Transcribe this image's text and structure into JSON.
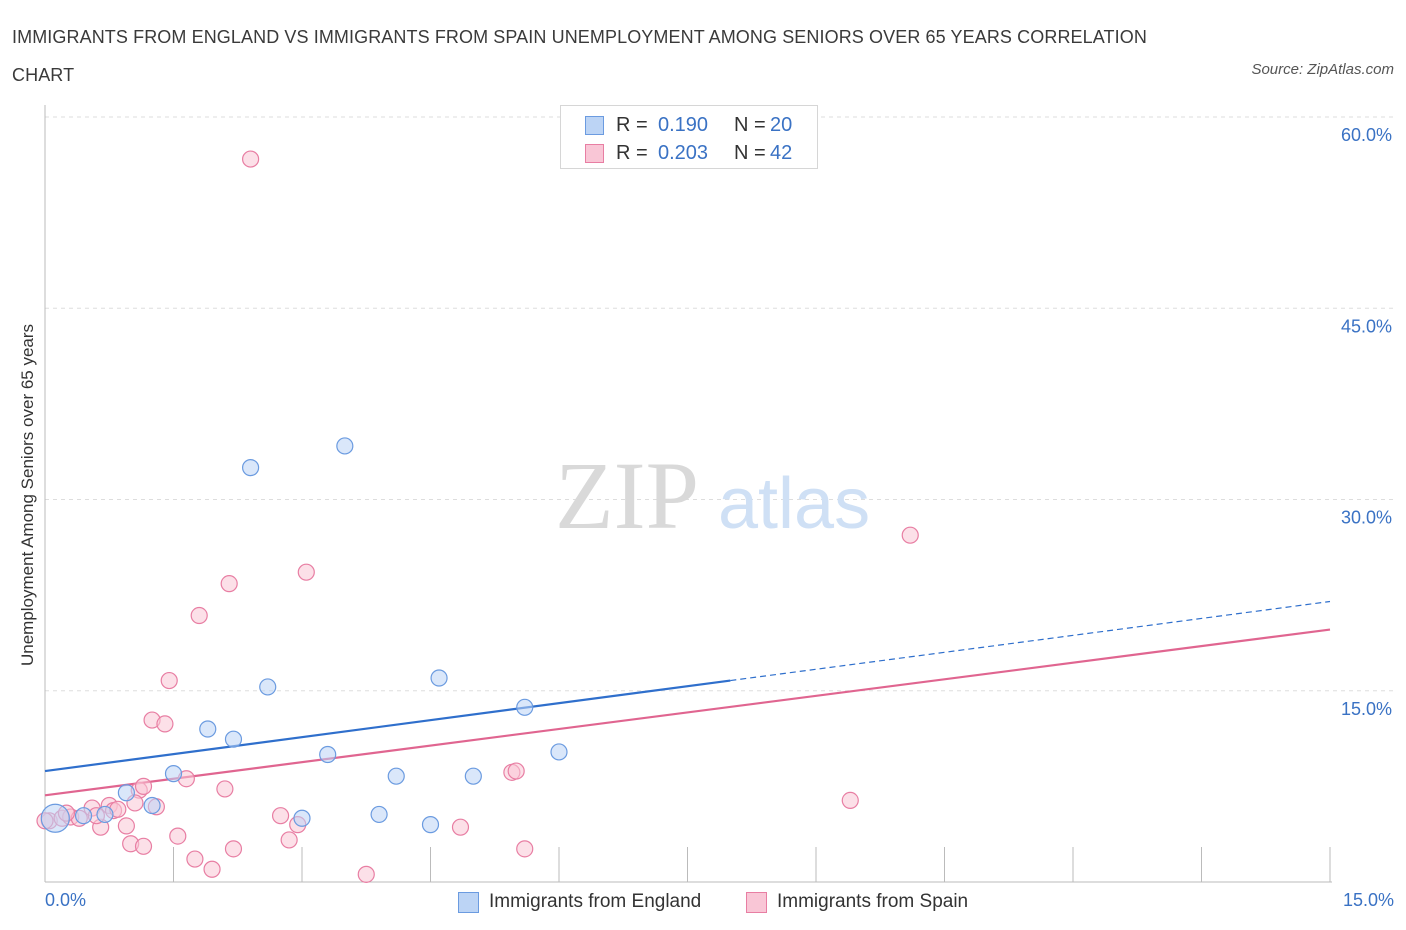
{
  "title": "IMMIGRANTS FROM ENGLAND VS IMMIGRANTS FROM SPAIN UNEMPLOYMENT AMONG SENIORS OVER 65 YEARS CORRELATION CHART",
  "source": "Source: ZipAtlas.com",
  "watermark": {
    "zip": "ZIP",
    "atlas": "atlas"
  },
  "legend": {
    "rows": [
      {
        "r_label": "R =",
        "r_value": "0.190",
        "n_label": "N =",
        "n_value": "20"
      },
      {
        "r_label": "R =",
        "r_value": "0.203",
        "n_label": "N =",
        "n_value": "42"
      }
    ]
  },
  "colors": {
    "england": "#6b9be0",
    "england_fill": "#bcd4f5",
    "england_line": "#2f6fcc",
    "spain": "#e87ea3",
    "spain_fill": "#f9c6d6",
    "spain_line": "#e06590",
    "axis_text": "#3a72c4",
    "grid": "#dddddd"
  },
  "chart_data": {
    "type": "scatter",
    "title": "IMMIGRANTS FROM ENGLAND VS IMMIGRANTS FROM SPAIN UNEMPLOYMENT AMONG SENIORS OVER 65 YEARS CORRELATION CHART",
    "xlabel": "",
    "ylabel": "Unemployment Among Seniors over 65 years",
    "xlim": [
      0,
      15
    ],
    "ylim": [
      0,
      60
    ],
    "x_tick_labels": [
      "0.0%",
      "15.0%"
    ],
    "y_ticks": [
      15,
      30,
      45,
      60
    ],
    "y_tick_labels": [
      "15.0%",
      "30.0%",
      "45.0%",
      "60.0%"
    ],
    "legend_position": "top-center",
    "series": [
      {
        "name": "Immigrants from England",
        "points": [
          [
            0.12,
            5.0
          ],
          [
            0.45,
            5.2
          ],
          [
            0.7,
            5.3
          ],
          [
            0.95,
            7.0
          ],
          [
            1.25,
            6.0
          ],
          [
            1.5,
            8.5
          ],
          [
            1.9,
            12.0
          ],
          [
            2.2,
            11.2
          ],
          [
            2.4,
            32.5
          ],
          [
            2.6,
            15.3
          ],
          [
            3.0,
            5.0
          ],
          [
            3.3,
            10.0
          ],
          [
            3.5,
            34.2
          ],
          [
            3.9,
            5.3
          ],
          [
            4.1,
            8.3
          ],
          [
            4.5,
            4.5
          ],
          [
            4.6,
            16.0
          ],
          [
            5.0,
            8.3
          ],
          [
            5.6,
            13.7
          ],
          [
            6.0,
            10.2
          ]
        ],
        "trend": {
          "x": [
            0,
            8.0
          ],
          "y": [
            8.7,
            15.8
          ]
        },
        "trend_extension": {
          "x": [
            8.0,
            15.0
          ],
          "y": [
            15.8,
            22.0
          ]
        }
      },
      {
        "name": "Immigrants from Spain",
        "points": [
          [
            0.05,
            4.8
          ],
          [
            0.2,
            5.0
          ],
          [
            0.3,
            5.1
          ],
          [
            0.4,
            5.0
          ],
          [
            0.55,
            5.8
          ],
          [
            0.65,
            4.3
          ],
          [
            0.75,
            6.0
          ],
          [
            0.8,
            5.6
          ],
          [
            0.95,
            4.4
          ],
          [
            1.0,
            3.0
          ],
          [
            1.1,
            7.2
          ],
          [
            1.15,
            7.5
          ],
          [
            1.15,
            2.8
          ],
          [
            1.25,
            12.7
          ],
          [
            1.3,
            5.9
          ],
          [
            1.4,
            12.4
          ],
          [
            1.45,
            15.8
          ],
          [
            1.55,
            3.6
          ],
          [
            1.65,
            8.1
          ],
          [
            1.75,
            1.8
          ],
          [
            1.8,
            20.9
          ],
          [
            1.95,
            1.0
          ],
          [
            2.1,
            7.3
          ],
          [
            2.15,
            23.4
          ],
          [
            2.2,
            2.6
          ],
          [
            2.4,
            56.7
          ],
          [
            2.75,
            5.2
          ],
          [
            2.85,
            3.3
          ],
          [
            2.95,
            4.5
          ],
          [
            3.05,
            24.3
          ],
          [
            3.75,
            0.6
          ],
          [
            4.85,
            4.3
          ],
          [
            5.45,
            8.6
          ],
          [
            5.5,
            8.7
          ],
          [
            5.6,
            2.6
          ],
          [
            9.4,
            6.4
          ],
          [
            10.1,
            27.2
          ],
          [
            0.0,
            4.8
          ],
          [
            0.25,
            5.4
          ],
          [
            0.6,
            5.2
          ],
          [
            0.85,
            5.7
          ],
          [
            1.05,
            6.2
          ]
        ],
        "trend": {
          "x": [
            0,
            15.0
          ],
          "y": [
            6.8,
            19.8
          ]
        }
      }
    ]
  }
}
